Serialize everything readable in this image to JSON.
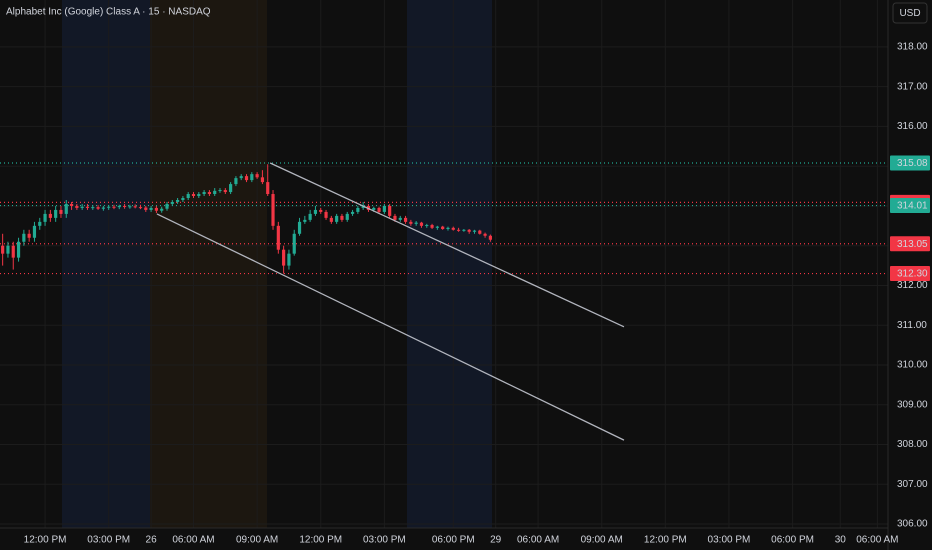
{
  "chart_data": {
    "type": "candlestick",
    "title": "Alphabet Inc (Google) Class A · 15 · NASDAQ",
    "currency": "USD",
    "up_color": "#22ab94",
    "down_color": "#f23645",
    "grid": true,
    "ylim": [
      305.9,
      319.18
    ],
    "yticks": [
      {
        "value": 306,
        "label": "306.00"
      },
      {
        "value": 307,
        "label": "307.00"
      },
      {
        "value": 308,
        "label": "308.00"
      },
      {
        "value": 309,
        "label": "309.00"
      },
      {
        "value": 310,
        "label": "310.00"
      },
      {
        "value": 311,
        "label": "311.00"
      },
      {
        "value": 312,
        "label": "312.00"
      },
      {
        "value": 313,
        "label": "313.00"
      },
      {
        "value": 314,
        "label": "314.00"
      },
      {
        "value": 315,
        "label": "315.00"
      },
      {
        "value": 316,
        "label": "316.00"
      },
      {
        "value": 317,
        "label": "317.00"
      },
      {
        "value": 318,
        "label": "318.00"
      }
    ],
    "xlim": [
      -8.5,
      159
    ],
    "xticks": [
      {
        "value": 0,
        "label": "12:00 PM"
      },
      {
        "value": 12,
        "label": "03:00 PM"
      },
      {
        "value": 20,
        "label": "26"
      },
      {
        "value": 28,
        "label": "06:00 AM"
      },
      {
        "value": 40,
        "label": "09:00 AM"
      },
      {
        "value": 52,
        "label": "12:00 PM"
      },
      {
        "value": 64,
        "label": "03:00 PM"
      },
      {
        "value": 77,
        "label": "06:00 PM"
      },
      {
        "value": 85,
        "label": "29"
      },
      {
        "value": 93,
        "label": "06:00 AM"
      },
      {
        "value": 105,
        "label": "09:00 AM"
      },
      {
        "value": 117,
        "label": "12:00 PM"
      },
      {
        "value": 129,
        "label": "03:00 PM"
      },
      {
        "value": 141,
        "label": "06:00 PM"
      },
      {
        "value": 150,
        "label": "30"
      },
      {
        "value": 157,
        "label": "06:00 AM"
      }
    ],
    "x": [
      -8,
      -7,
      -6,
      -5,
      -4,
      -3,
      -2,
      -1,
      0,
      1,
      2,
      3,
      4,
      5,
      6,
      7,
      8,
      9,
      10,
      11,
      12,
      13,
      14,
      15,
      16,
      17,
      18,
      19,
      20,
      21,
      22,
      23,
      24,
      25,
      26,
      27,
      28,
      29,
      30,
      31,
      32,
      33,
      34,
      35,
      36,
      37,
      38,
      39,
      40,
      41,
      42,
      43,
      44,
      45,
      46,
      47,
      48,
      49,
      50,
      51,
      52,
      53,
      54,
      55,
      56,
      57,
      58,
      59,
      60,
      61,
      62,
      63,
      64,
      65,
      66,
      67,
      68,
      69,
      70,
      71,
      72,
      73,
      74,
      75,
      76,
      77,
      78,
      79,
      80,
      81,
      82,
      83,
      84
    ],
    "open": [
      313.0,
      312.8,
      313.0,
      312.7,
      313.1,
      313.3,
      313.2,
      313.5,
      313.6,
      313.8,
      313.7,
      313.9,
      313.8,
      314.05,
      314.0,
      313.95,
      313.98,
      313.95,
      313.97,
      313.93,
      313.96,
      313.98,
      313.97,
      314.0,
      313.98,
      313.99,
      313.97,
      313.96,
      313.9,
      313.95,
      313.88,
      313.93,
      314.05,
      314.1,
      314.15,
      314.2,
      314.3,
      314.25,
      314.3,
      314.35,
      314.3,
      314.38,
      314.4,
      314.35,
      314.55,
      314.7,
      314.75,
      314.65,
      314.8,
      314.72,
      314.6,
      314.3,
      313.5,
      312.9,
      312.5,
      312.8,
      313.3,
      313.6,
      313.65,
      313.8,
      313.9,
      313.85,
      313.7,
      313.6,
      313.75,
      313.65,
      313.8,
      313.85,
      313.95,
      314.0,
      313.9,
      313.95,
      313.85,
      314.0,
      313.75,
      313.65,
      313.7,
      313.6,
      313.55,
      313.58,
      313.5,
      313.52,
      313.45,
      313.48,
      313.42,
      313.45,
      313.4,
      313.38,
      313.4,
      313.35,
      313.38,
      313.3,
      313.25
    ],
    "high": [
      313.3,
      313.1,
      313.1,
      313.2,
      313.4,
      313.4,
      313.6,
      313.7,
      313.9,
      313.9,
      314.0,
      314.0,
      314.15,
      314.1,
      314.05,
      314.05,
      314.05,
      314.02,
      314.02,
      314.0,
      314.02,
      314.03,
      314.03,
      314.05,
      314.03,
      314.04,
      314.03,
      314.0,
      314.0,
      314.0,
      313.98,
      314.1,
      314.15,
      314.2,
      314.25,
      314.35,
      314.35,
      314.35,
      314.4,
      314.4,
      314.45,
      314.45,
      314.45,
      314.6,
      314.75,
      314.8,
      314.8,
      314.85,
      314.85,
      314.9,
      315.05,
      314.4,
      313.6,
      313.0,
      312.9,
      313.4,
      313.7,
      313.75,
      313.9,
      314.0,
      313.95,
      313.9,
      313.75,
      313.8,
      313.8,
      313.85,
      313.9,
      314.0,
      314.1,
      314.05,
      313.98,
      313.98,
      314.05,
      314.05,
      313.8,
      313.75,
      313.75,
      313.65,
      313.62,
      313.6,
      313.55,
      313.55,
      313.5,
      313.5,
      313.48,
      313.48,
      313.45,
      313.42,
      313.42,
      313.4,
      313.4,
      313.33,
      313.28
    ],
    "low": [
      312.5,
      312.7,
      312.4,
      312.6,
      313.0,
      313.1,
      313.1,
      313.4,
      313.5,
      313.6,
      313.6,
      313.7,
      313.7,
      313.9,
      313.9,
      313.9,
      313.9,
      313.9,
      313.9,
      313.88,
      313.9,
      313.92,
      313.92,
      313.93,
      313.93,
      313.94,
      313.92,
      313.85,
      313.85,
      313.82,
      313.83,
      313.88,
      314.0,
      314.05,
      314.1,
      314.15,
      314.2,
      314.2,
      314.25,
      314.25,
      314.25,
      314.33,
      314.3,
      314.3,
      314.5,
      314.65,
      314.6,
      314.6,
      314.68,
      314.55,
      314.25,
      313.4,
      312.8,
      312.3,
      312.4,
      312.75,
      313.25,
      313.55,
      313.6,
      313.75,
      313.8,
      313.65,
      313.55,
      313.55,
      313.6,
      313.6,
      313.75,
      313.8,
      313.9,
      313.85,
      313.85,
      313.8,
      313.8,
      313.7,
      313.6,
      313.6,
      313.55,
      313.5,
      313.5,
      313.45,
      313.45,
      313.42,
      313.4,
      313.4,
      313.38,
      313.38,
      313.35,
      313.35,
      313.3,
      313.3,
      313.28,
      313.2,
      313.1
    ],
    "close": [
      312.8,
      313.0,
      312.7,
      313.1,
      313.3,
      313.2,
      313.5,
      313.6,
      313.8,
      313.7,
      313.9,
      313.8,
      314.05,
      314.0,
      313.95,
      313.98,
      313.95,
      313.97,
      313.93,
      313.96,
      313.98,
      313.97,
      314.0,
      313.98,
      313.99,
      313.97,
      313.96,
      313.9,
      313.95,
      313.88,
      313.93,
      314.05,
      314.1,
      314.15,
      314.2,
      314.3,
      314.25,
      314.3,
      314.35,
      314.3,
      314.38,
      314.4,
      314.35,
      314.55,
      314.7,
      314.75,
      314.65,
      314.8,
      314.72,
      314.6,
      314.3,
      313.5,
      312.9,
      312.5,
      312.8,
      313.3,
      313.6,
      313.65,
      313.8,
      313.9,
      313.85,
      313.7,
      313.6,
      313.75,
      313.65,
      313.8,
      313.85,
      313.95,
      314.0,
      313.9,
      313.95,
      313.85,
      314.0,
      313.75,
      313.65,
      313.7,
      313.6,
      313.55,
      313.58,
      313.5,
      313.52,
      313.45,
      313.48,
      313.42,
      313.45,
      313.4,
      313.38,
      313.4,
      313.35,
      313.38,
      313.3,
      313.25,
      313.15
    ],
    "price_lines": [
      {
        "value": 315.08,
        "color": "#22ab94"
      },
      {
        "value": 314.09,
        "color": "#f23645"
      },
      {
        "value": 314.01,
        "color": "#22ab94"
      },
      {
        "value": 313.05,
        "color": "#f23645"
      },
      {
        "value": 312.3,
        "label": "312.30",
        "color": "#f23645"
      }
    ],
    "trend_lines": [
      {
        "x": [
          42.45,
          109.2
        ],
        "y": [
          315.08,
          310.96
        ]
      },
      {
        "x": [
          21.1,
          109.2
        ],
        "y": [
          313.8,
          308.11
        ]
      }
    ]
  }
}
